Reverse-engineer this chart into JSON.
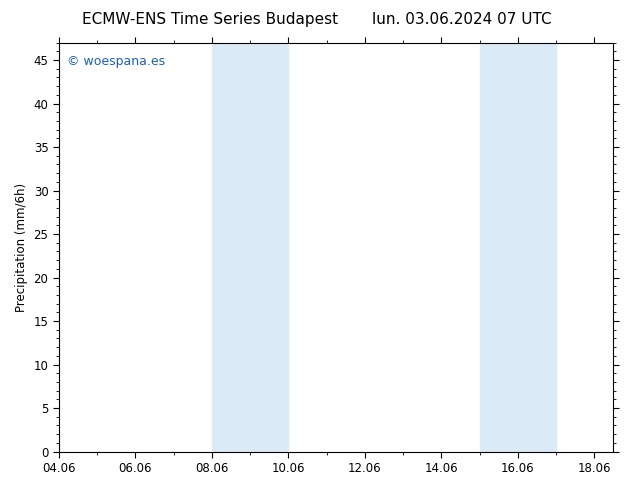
{
  "title_left": "ECMW-ENS Time Series Budapest",
  "title_right": "lun. 03.06.2024 07 UTC",
  "ylabel": "Precipitation (mm/6h)",
  "xlim_left": 4.0,
  "xlim_right": 18.5,
  "ylim_bottom": 0,
  "ylim_top": 47,
  "yticks": [
    0,
    5,
    10,
    15,
    20,
    25,
    30,
    35,
    40,
    45
  ],
  "xtick_labels": [
    "04.06",
    "06.06",
    "08.06",
    "10.06",
    "12.06",
    "14.06",
    "16.06",
    "18.06"
  ],
  "xtick_positions": [
    4.0,
    6.0,
    8.0,
    10.0,
    12.0,
    14.0,
    16.0,
    18.0
  ],
  "shaded_regions": [
    [
      8.0,
      9.0
    ],
    [
      9.0,
      10.0
    ],
    [
      15.0,
      16.0
    ],
    [
      16.0,
      17.0
    ]
  ],
  "shaded_color": "#dbeaf7",
  "background_color": "#ffffff",
  "plot_bg_color": "#ffffff",
  "watermark_text": "© woespana.es",
  "watermark_color": "#1a5fc8",
  "title_fontsize": 11,
  "tick_fontsize": 8.5,
  "ylabel_fontsize": 8.5,
  "watermark_fontsize": 9
}
